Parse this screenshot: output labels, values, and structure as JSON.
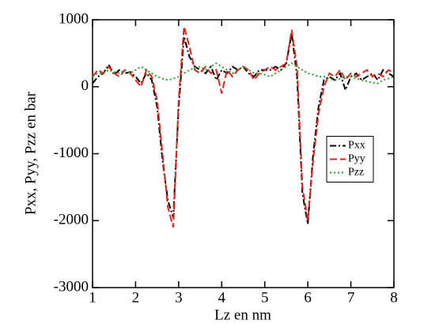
{
  "chart_data": {
    "type": "line",
    "x_label": "Lz en nm",
    "y_label": "Pxx, Pyy, Pzz en bar",
    "x": [
      1,
      1.125,
      1.25,
      1.375,
      1.5,
      1.625,
      1.75,
      1.875,
      2,
      2.125,
      2.25,
      2.375,
      2.5,
      2.625,
      2.75,
      2.875,
      3,
      3.125,
      3.25,
      3.375,
      3.5,
      3.625,
      3.75,
      3.875,
      4,
      4.125,
      4.25,
      4.375,
      4.5,
      4.625,
      4.75,
      4.875,
      5,
      5.125,
      5.25,
      5.375,
      5.5,
      5.625,
      5.75,
      5.875,
      6,
      6.125,
      6.25,
      6.375,
      6.5,
      6.625,
      6.75,
      6.875,
      7,
      7.125,
      7.25,
      7.375,
      7.5,
      7.625,
      7.75,
      7.875,
      8
    ],
    "series": [
      {
        "name": "Pxx",
        "color": "#000000",
        "style": "dash-dot",
        "values": [
          50,
          150,
          200,
          330,
          180,
          250,
          200,
          220,
          150,
          50,
          200,
          100,
          -300,
          -1100,
          -1700,
          -1950,
          -300,
          750,
          450,
          300,
          250,
          200,
          300,
          100,
          250,
          200,
          300,
          250,
          300,
          200,
          150,
          250,
          250,
          250,
          300,
          250,
          350,
          800,
          150,
          -1600,
          -2050,
          -1000,
          -300,
          100,
          150,
          100,
          200,
          -50,
          150,
          200,
          100,
          150,
          200,
          100,
          250,
          200,
          150
        ]
      },
      {
        "name": "Pyy",
        "color": "#e8211b",
        "style": "dashed",
        "values": [
          150,
          250,
          200,
          300,
          200,
          150,
          250,
          200,
          100,
          0,
          250,
          150,
          -200,
          -1000,
          -1800,
          -2100,
          -200,
          900,
          600,
          250,
          200,
          300,
          200,
          250,
          -100,
          250,
          150,
          250,
          300,
          250,
          100,
          200,
          250,
          300,
          250,
          300,
          350,
          850,
          300,
          -1500,
          -2000,
          -1100,
          -400,
          0,
          200,
          150,
          250,
          100,
          200,
          150,
          200,
          250,
          150,
          200,
          150,
          250,
          200
        ]
      },
      {
        "name": "Pzz",
        "color": "#22a32a",
        "style": "dotted",
        "values": [
          150,
          200,
          200,
          250,
          220,
          200,
          250,
          200,
          250,
          300,
          250,
          200,
          150,
          120,
          100,
          120,
          150,
          200,
          250,
          280,
          300,
          250,
          300,
          350,
          300,
          250,
          200,
          250,
          300,
          250,
          200,
          200,
          180,
          150,
          200,
          250,
          300,
          350,
          300,
          250,
          200,
          180,
          150,
          150,
          120,
          100,
          120,
          150,
          150,
          120,
          100,
          80,
          60,
          50,
          100,
          120,
          150
        ]
      }
    ],
    "xlim": [
      1,
      8
    ],
    "xticks": [
      1,
      2,
      3,
      4,
      5,
      6,
      7,
      8
    ],
    "ylim": [
      -3000,
      1000
    ],
    "yticks": [
      -3000,
      -2000,
      -1000,
      0,
      1000
    ],
    "legend_position": "right",
    "grid": false
  }
}
